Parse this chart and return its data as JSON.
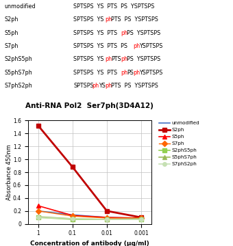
{
  "title": "Anti-RNA Pol2  Ser7ph(3D4A12)",
  "xlabel": "Concentration of antibody (μg/ml)",
  "ylabel": "Absorbance 450nm",
  "series": {
    "unmodified": {
      "values": [
        0.2,
        0.14,
        0.1,
        0.09
      ],
      "color": "#4472C4",
      "marker": "none",
      "linestyle": "-",
      "linewidth": 1.2
    },
    "S2ph": {
      "values": [
        1.52,
        0.88,
        0.2,
        0.1
      ],
      "color": "#C00000",
      "marker": "s",
      "linestyle": "-",
      "linewidth": 2.0
    },
    "S5ph": {
      "values": [
        0.28,
        0.13,
        0.1,
        0.09
      ],
      "color": "#FF0000",
      "marker": "^",
      "linestyle": "-",
      "linewidth": 1.2
    },
    "S7ph": {
      "values": [
        0.2,
        0.12,
        0.09,
        0.09
      ],
      "color": "#FF6600",
      "marker": "D",
      "linestyle": "-",
      "linewidth": 1.0
    },
    "S2phS5ph": {
      "values": [
        0.1,
        0.07,
        0.07,
        0.07
      ],
      "color": "#92D050",
      "marker": "s",
      "linestyle": "-",
      "linewidth": 1.2
    },
    "S5phS7ph": {
      "values": [
        0.11,
        0.08,
        0.07,
        0.08
      ],
      "color": "#9BBB59",
      "marker": "^",
      "linestyle": "-",
      "linewidth": 1.2
    },
    "S7phS2ph": {
      "values": [
        0.1,
        0.08,
        0.07,
        0.07
      ],
      "color": "#C6E0B4",
      "marker": "o",
      "linestyle": "-",
      "linewidth": 1.2
    }
  },
  "ylim": [
    0,
    1.6
  ],
  "yticks": [
    0,
    0.2,
    0.4,
    0.6,
    0.8,
    1.0,
    1.2,
    1.4,
    1.6
  ],
  "table_rows": [
    {
      "label": "unmodified",
      "segments": [
        [
          "SPTSPS  YS  PTS  PS  YSPTSPS",
          "black"
        ]
      ]
    },
    {
      "label": "S2ph",
      "segments": [
        [
          "SPTSPS  YS",
          "black"
        ],
        [
          "ph",
          "red"
        ],
        [
          "PTS  PS  YSPTSPS",
          "black"
        ]
      ]
    },
    {
      "label": "S5ph",
      "segments": [
        [
          "SPTSPS  YS  PTS",
          "black"
        ],
        [
          "ph",
          "red"
        ],
        [
          "PS  YSPTSPS",
          "black"
        ]
      ]
    },
    {
      "label": "S7ph",
      "segments": [
        [
          "SPTSPS  YS  PTS  PS",
          "black"
        ],
        [
          "ph",
          "red"
        ],
        [
          "YSPTSPS",
          "black"
        ]
      ]
    },
    {
      "label": "S2phS5ph",
      "segments": [
        [
          "SPTSPS  YS",
          "black"
        ],
        [
          "ph",
          "red"
        ],
        [
          "PTS",
          "black"
        ],
        [
          "ph",
          "red"
        ],
        [
          "PS  YSPTSPS",
          "black"
        ]
      ]
    },
    {
      "label": "S5phS7ph",
      "segments": [
        [
          "SPTSPS  YS  PTS",
          "black"
        ],
        [
          "ph",
          "red"
        ],
        [
          "PS",
          "black"
        ],
        [
          "ph",
          "red"
        ],
        [
          "YSPTSPS",
          "black"
        ]
      ]
    },
    {
      "label": "S7phS2ph",
      "segments": [
        [
          "SPTSPS",
          "black"
        ],
        [
          "ph",
          "red"
        ],
        [
          "YS",
          "black"
        ],
        [
          "ph",
          "red"
        ],
        [
          "PTS  PS  YSPTSPS",
          "black"
        ]
      ]
    }
  ],
  "bg_color": "#FFFFFF"
}
